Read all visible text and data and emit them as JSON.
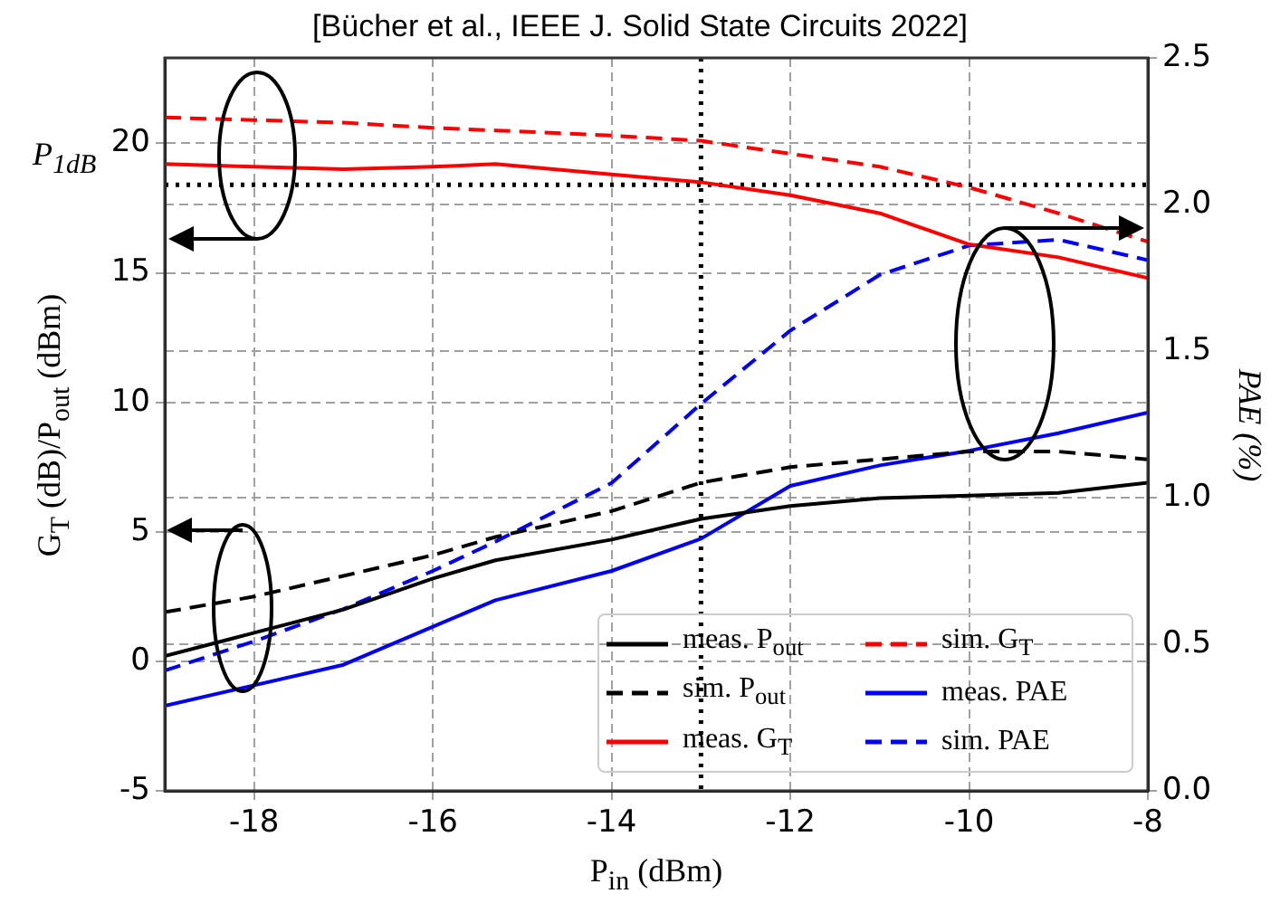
{
  "chart_data": {
    "type": "line",
    "title": "[Bücher et al., IEEE J. Solid State Circuits 2022]",
    "xlabel": "P$_{in}$ (dBm)",
    "ylabel": "G$_{T}$ (dB)/P$_{out}$ (dBm)",
    "y2label": "PAE (%)",
    "x": [
      -19,
      -18,
      -17,
      -16,
      -15.3,
      -14,
      -13,
      -12,
      -11,
      -10,
      -9,
      -8
    ],
    "series": [
      {
        "name": "meas. P$_{out}$",
        "color": "#000000",
        "line_style": "solid",
        "values": [
          0.2,
          1.1,
          2.0,
          3.2,
          3.9,
          4.7,
          5.5,
          6.0,
          6.3,
          6.4,
          6.5,
          6.9
        ]
      },
      {
        "name": "sim. P$_{out}$",
        "color": "#000000",
        "line_style": "dashed",
        "values": [
          1.9,
          2.5,
          3.3,
          4.1,
          4.8,
          5.8,
          6.9,
          7.5,
          7.8,
          8.1,
          8.1,
          7.8
        ]
      },
      {
        "name": "meas. G$_{T}$",
        "color": "#ff0000",
        "line_style": "solid",
        "values": [
          19.2,
          19.1,
          19.0,
          19.1,
          19.2,
          18.8,
          18.5,
          18.0,
          17.3,
          16.1,
          15.6,
          14.8
        ]
      },
      {
        "name": "sim. G$_{T}$",
        "color": "#ff0000",
        "line_style": "dashed",
        "values": [
          21.0,
          20.9,
          20.8,
          20.6,
          20.5,
          20.3,
          20.1,
          19.6,
          19.1,
          18.3,
          17.3,
          16.2
        ]
      },
      {
        "name": "meas. PAE",
        "color": "#0000ff",
        "line_style": "solid",
        "axis": "y2",
        "values": [
          0.29,
          0.36,
          0.43,
          0.56,
          0.65,
          0.75,
          0.86,
          1.04,
          1.11,
          1.16,
          1.22,
          1.29
        ]
      },
      {
        "name": "sim. PAE",
        "color": "#0000ff",
        "line_style": "dashed",
        "axis": "y2",
        "values": [
          0.41,
          0.51,
          0.62,
          0.75,
          0.85,
          1.05,
          1.32,
          1.57,
          1.76,
          1.86,
          1.88,
          1.81
        ]
      }
    ],
    "xlim": [
      -19,
      -8
    ],
    "xticks": [
      -18,
      -16,
      -14,
      -12,
      -10,
      -8
    ],
    "ylim": [
      -5,
      23.3
    ],
    "yticks": [
      -5,
      0,
      5,
      10,
      15,
      20
    ],
    "y2lim": [
      0,
      2.5
    ],
    "y2ticks": [
      {
        "value": 0,
        "label": "0.0"
      },
      {
        "value": 0.5,
        "label": "0.5"
      },
      {
        "value": 1,
        "label": "1.0"
      },
      {
        "value": 1.5,
        "label": "1.5"
      },
      {
        "value": 2,
        "label": "2.0"
      },
      {
        "value": 2.5,
        "label": "2.5"
      }
    ],
    "ref_lines": [
      {
        "axis": "y",
        "value": 18.4,
        "label": "P$_{1dB}$",
        "color": "#000000",
        "line_style": "dotted"
      },
      {
        "axis": "x",
        "value": -13,
        "color": "#000000",
        "line_style": "dotted"
      }
    ],
    "grid": true,
    "legend": "bottom right",
    "marker": "none"
  }
}
